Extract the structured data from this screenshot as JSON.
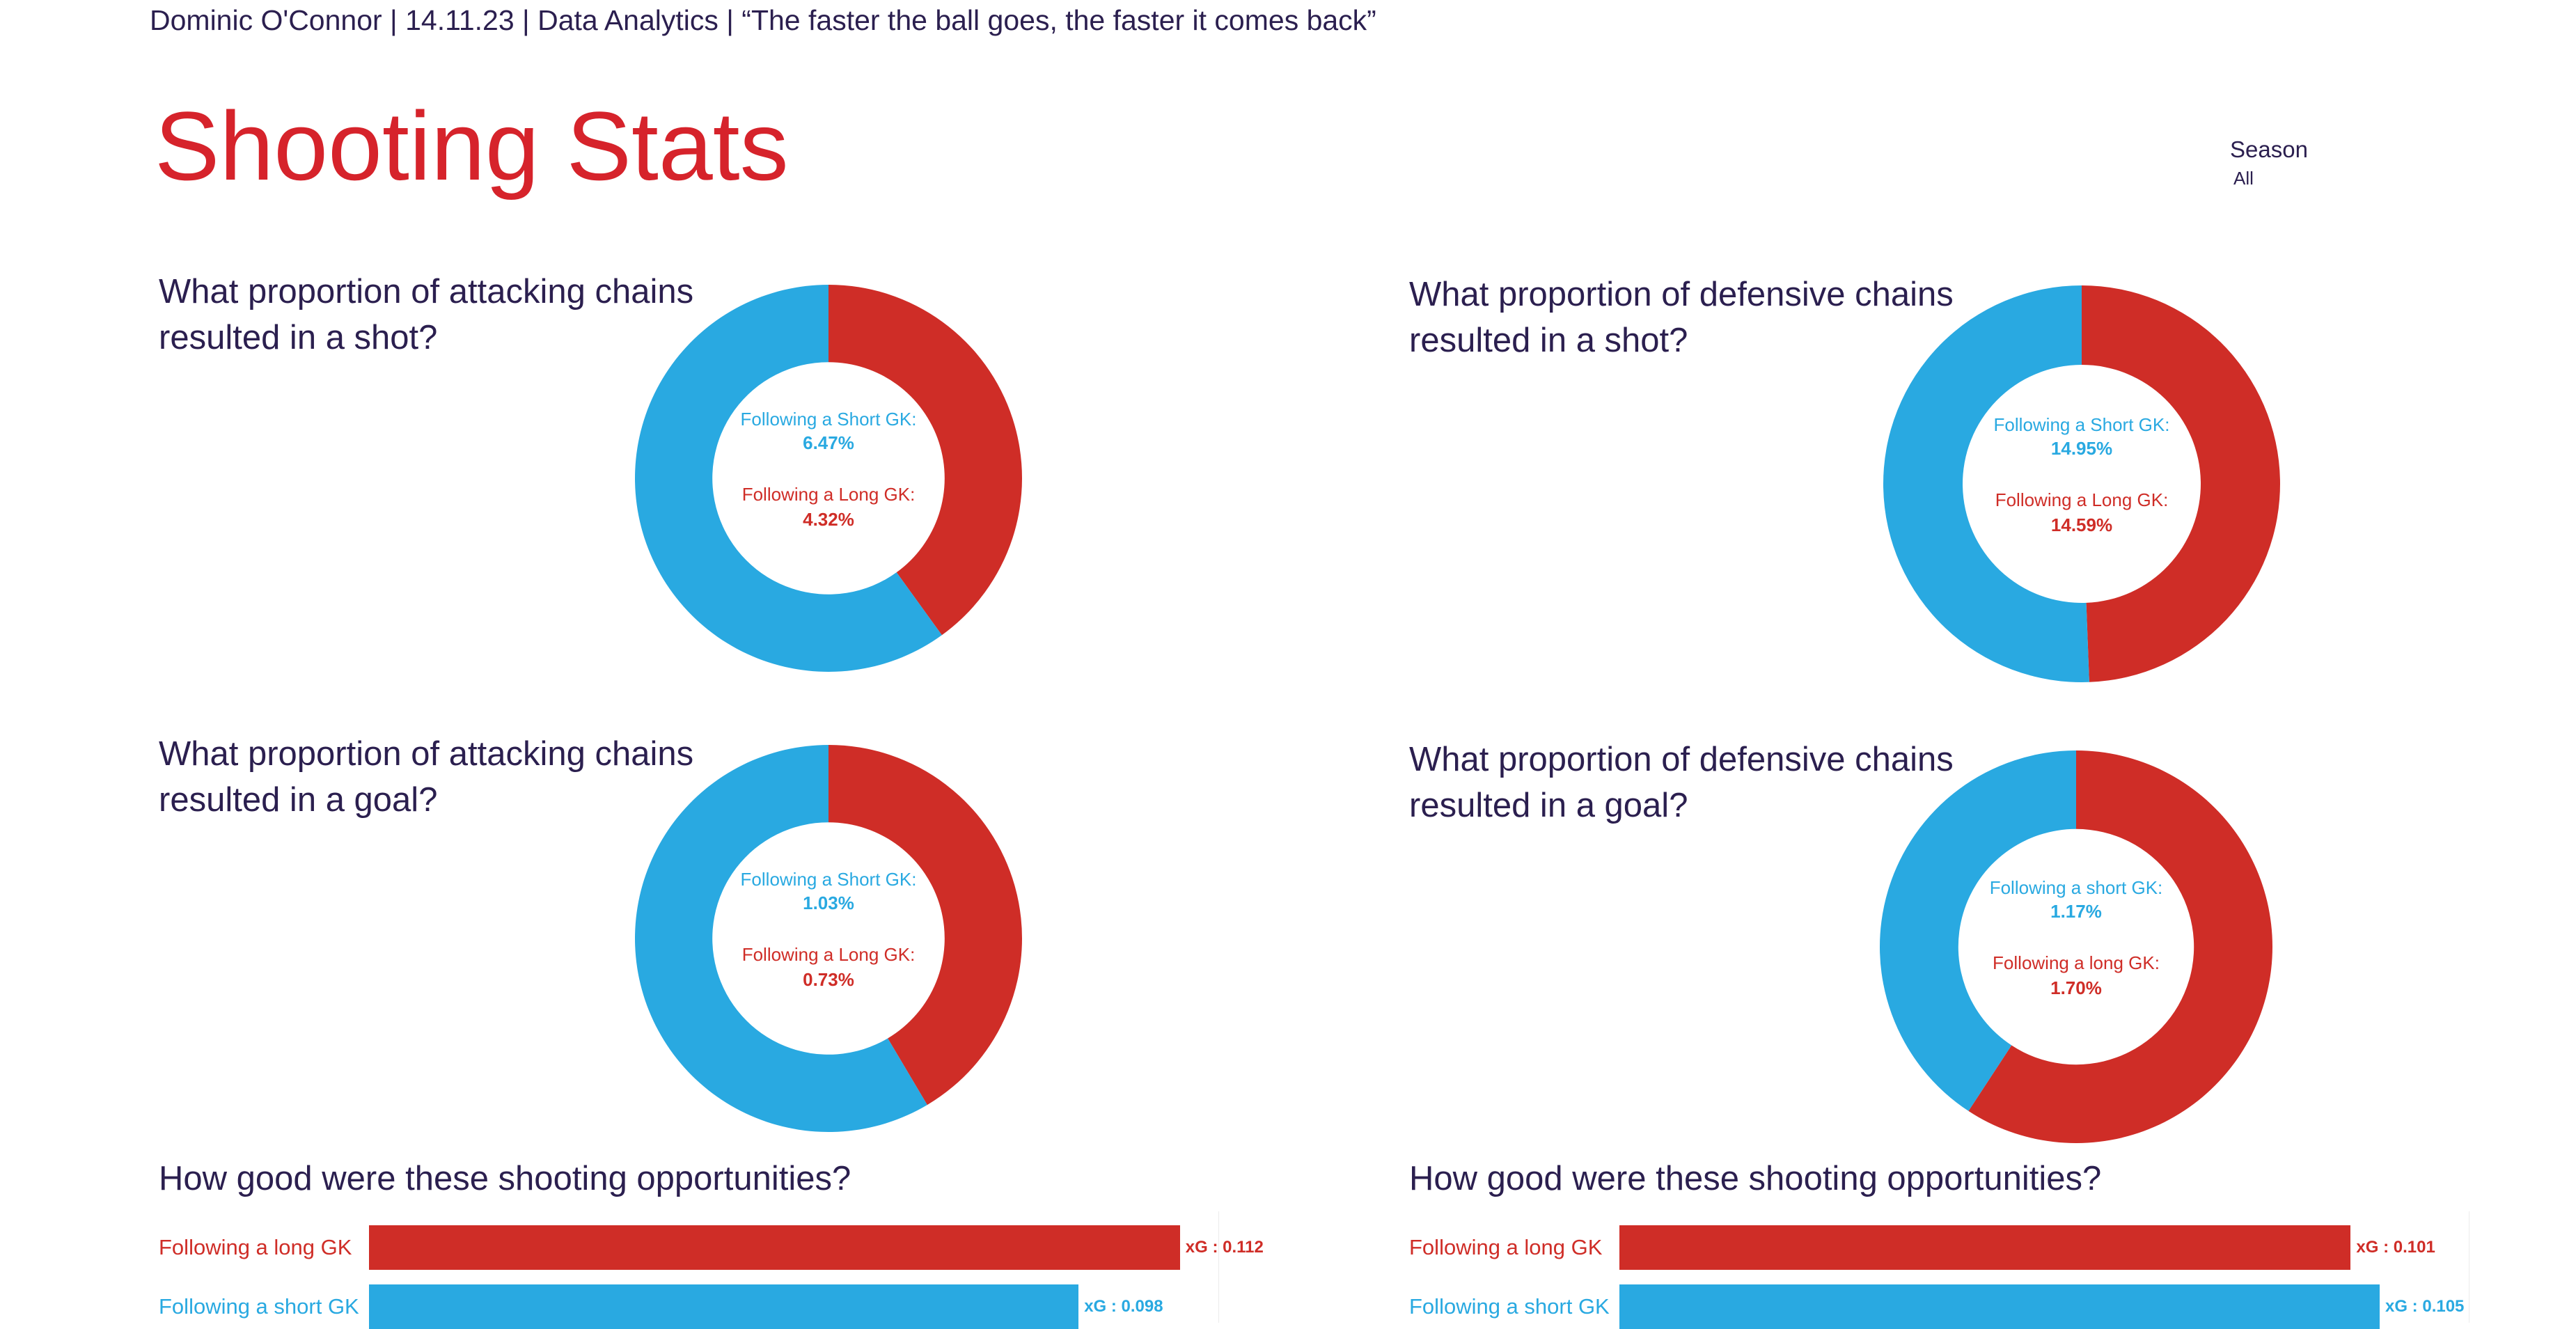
{
  "header": {
    "line": "Dominic O'Connor | 14.11.23 | Data Analytics | “The faster the ball goes, the faster it comes back”"
  },
  "title": "Shooting Stats",
  "filter": {
    "label": "Season",
    "value": "All"
  },
  "colors": {
    "short": "#29a9e1",
    "long": "#cf2d27",
    "title": "#d6232b",
    "text": "#2b1f4f"
  },
  "chart_data": [
    {
      "id": "att-shot",
      "type": "pie",
      "title_lines": [
        "What proportion of attacking chains",
        "resulted in a shot?"
      ],
      "slices": [
        {
          "label": "Following a Short GK:",
          "value": 6.47,
          "value_text": "6.47%",
          "color": "#29a9e1"
        },
        {
          "label": "Following a Long GK:",
          "value": 4.32,
          "value_text": "4.32%",
          "color": "#cf2d27"
        }
      ]
    },
    {
      "id": "def-shot",
      "type": "pie",
      "title_lines": [
        "What proportion of defensive chains",
        "resulted in a shot?"
      ],
      "slices": [
        {
          "label": "Following a Short GK:",
          "value": 14.95,
          "value_text": "14.95%",
          "color": "#29a9e1"
        },
        {
          "label": "Following a Long GK:",
          "value": 14.59,
          "value_text": "14.59%",
          "color": "#cf2d27"
        }
      ]
    },
    {
      "id": "att-goal",
      "type": "pie",
      "title_lines": [
        "What proportion of attacking chains",
        "resulted in a goal?"
      ],
      "slices": [
        {
          "label": "Following a Short GK:",
          "value": 1.03,
          "value_text": "1.03%",
          "color": "#29a9e1"
        },
        {
          "label": "Following a Long GK:",
          "value": 0.73,
          "value_text": "0.73%",
          "color": "#cf2d27"
        }
      ]
    },
    {
      "id": "def-goal",
      "type": "pie",
      "title_lines": [
        "What proportion of defensive chains",
        "resulted in a goal?"
      ],
      "slices": [
        {
          "label": "Following a short GK:",
          "value": 1.17,
          "value_text": "1.17%",
          "color": "#29a9e1"
        },
        {
          "label": "Following a long GK:",
          "value": 1.7,
          "value_text": "1.70%",
          "color": "#cf2d27"
        }
      ]
    },
    {
      "id": "att-xg",
      "type": "bar",
      "title": "How good were these shooting opportunities?",
      "categories": [
        "Following a long GK",
        "Following a short GK"
      ],
      "values": [
        0.112,
        0.098
      ],
      "value_labels": [
        "xG : 0.112",
        "xG : 0.098"
      ],
      "colors": [
        "#cf2d27",
        "#29a9e1"
      ],
      "xlim": [
        0,
        0.125
      ]
    },
    {
      "id": "def-xg",
      "type": "bar",
      "title": "How good were these shooting opportunities?",
      "categories": [
        "Following a long GK",
        "Following a short GK"
      ],
      "values": [
        0.101,
        0.105
      ],
      "value_labels": [
        "xG : 0.101",
        "xG : 0.105"
      ],
      "colors": [
        "#cf2d27",
        "#29a9e1"
      ],
      "xlim": [
        0,
        0.125
      ]
    }
  ]
}
